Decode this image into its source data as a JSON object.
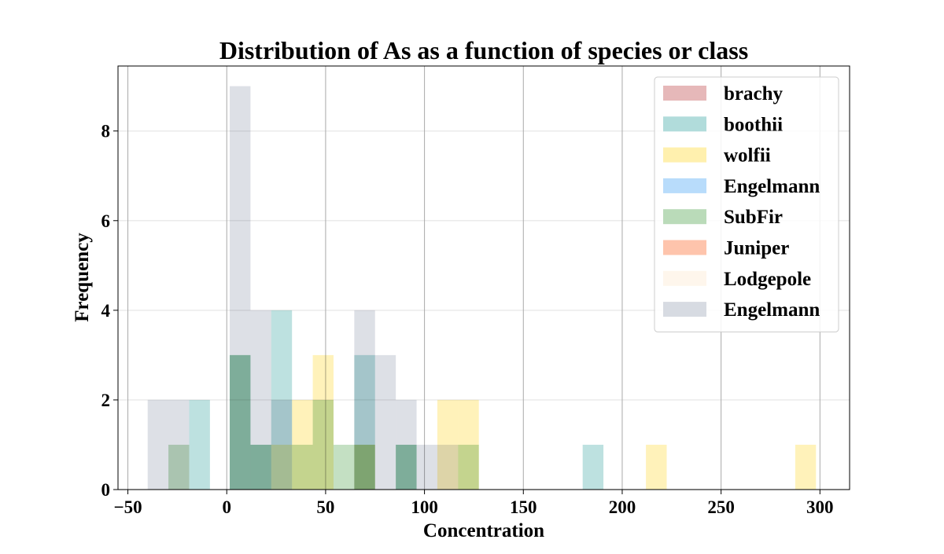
{
  "chart_data": {
    "type": "histogram",
    "title": "Distribution of As as a function of species or class",
    "xlabel": "Concentration",
    "ylabel": "Frequency",
    "xlim": [
      -55,
      315
    ],
    "ylim": [
      0,
      9.45
    ],
    "xticks": [
      -50,
      0,
      50,
      100,
      150,
      200,
      250,
      300
    ],
    "xtick_labels": [
      "−50",
      "0",
      "50",
      "100",
      "150",
      "200",
      "250",
      "300"
    ],
    "yticks": [
      0,
      2,
      4,
      6,
      8
    ],
    "ytick_labels": [
      "0",
      "2",
      "4",
      "6",
      "8"
    ],
    "grid": {
      "x_major": true,
      "y_faint": true
    },
    "legend_position": "top-right",
    "series": [
      {
        "name": "brachy",
        "color": "#e6b8b9",
        "bars": []
      },
      {
        "name": "boothii",
        "color": "#b1dcdb",
        "bars": [
          [
            -19,
            -8.5,
            2
          ],
          [
            1.5,
            12,
            3
          ],
          [
            12,
            22.5,
            1
          ],
          [
            22.5,
            33,
            4
          ],
          [
            64.5,
            75,
            3
          ],
          [
            85.5,
            96,
            1
          ],
          [
            180,
            190.5,
            1
          ]
        ]
      },
      {
        "name": "wolfii",
        "color": "#fff0ae",
        "bars": [
          [
            22.5,
            33,
            1
          ],
          [
            33,
            43.5,
            2
          ],
          [
            43.5,
            54,
            3
          ],
          [
            64.5,
            75,
            1
          ],
          [
            106.5,
            117,
            2
          ],
          [
            117,
            127.5,
            2
          ],
          [
            212,
            222.5,
            1
          ],
          [
            287.5,
            298,
            1
          ]
        ]
      },
      {
        "name": "Engelmann",
        "color": "#b8dcfb",
        "bars": []
      },
      {
        "name": "SubFir",
        "color": "#badbb9",
        "bars": [
          [
            -29.5,
            -19,
            1
          ],
          [
            1.5,
            12,
            3
          ],
          [
            12,
            22.5,
            1
          ],
          [
            33,
            43.5,
            1
          ],
          [
            43.5,
            54,
            2
          ],
          [
            54,
            64.5,
            1
          ],
          [
            64.5,
            75,
            1
          ],
          [
            85.5,
            96,
            1
          ],
          [
            117,
            127.5,
            1
          ]
        ]
      },
      {
        "name": "Juniper",
        "color": "#fec4ac",
        "bars": []
      },
      {
        "name": "Lodgepole",
        "color": "#fef6ec",
        "bars": []
      },
      {
        "name": "Engelmann",
        "color": "#d7dbe2",
        "bars": [
          [
            -40,
            -29.5,
            2
          ],
          [
            -29.5,
            -19,
            2
          ],
          [
            1.5,
            12,
            9
          ],
          [
            12,
            22.5,
            4
          ],
          [
            22.5,
            33,
            2
          ],
          [
            64.5,
            75,
            4
          ],
          [
            75,
            85.5,
            3
          ],
          [
            85.5,
            96,
            2
          ],
          [
            96,
            106.5,
            1
          ],
          [
            106.5,
            117,
            1
          ]
        ]
      }
    ]
  }
}
